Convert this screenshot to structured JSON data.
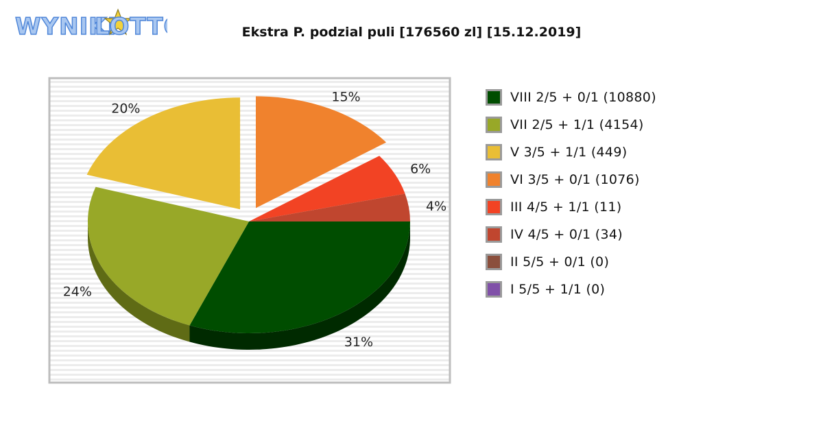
{
  "logo": {
    "text_left": "WYNIKI",
    "text_right": "LOTTO"
  },
  "chart_data": {
    "type": "pie",
    "title": "Ekstra P. podzial puli [176560 zl] [15.12.2019]",
    "slices": [
      {
        "name": "VIII 2/5 + 0/1 (10880)",
        "value": 31,
        "label": "31%",
        "color": "#004d00",
        "dark": "#002a00"
      },
      {
        "name": "VII 2/5 + 1/1 (4154)",
        "value": 24,
        "label": "24%",
        "color": "#98a828",
        "dark": "#5f6b15"
      },
      {
        "name": "V 3/5 + 1/1 (449)",
        "value": 20,
        "label": "20%",
        "color": "#e9be35",
        "dark": "#9a7d1e"
      },
      {
        "name": "VI 3/5 + 0/1 (1076)",
        "value": 15,
        "label": "15%",
        "color": "#f0822d",
        "dark": "#a2561c"
      },
      {
        "name": "III 4/5 + 1/1 (11)",
        "value": 6,
        "label": "6%",
        "color": "#f24324",
        "dark": "#a22c16"
      },
      {
        "name": "IV 4/5 + 0/1 (34)",
        "value": 4,
        "label": "4%",
        "color": "#c0462f",
        "dark": "#7f2e1f"
      },
      {
        "name": "II 5/5 + 0/1 (0)",
        "value": 0,
        "label": "",
        "color": "#8b4f3c",
        "dark": "#5b3327"
      },
      {
        "name": "I 5/5 + 1/1 (0)",
        "value": 0,
        "label": "",
        "color": "#8050a8",
        "dark": "#54346e"
      }
    ],
    "exploded": [
      "V 3/5 + 1/1 (449)",
      "VI 3/5 + 0/1 (1076)"
    ],
    "legend_position": "right",
    "grid": true
  }
}
